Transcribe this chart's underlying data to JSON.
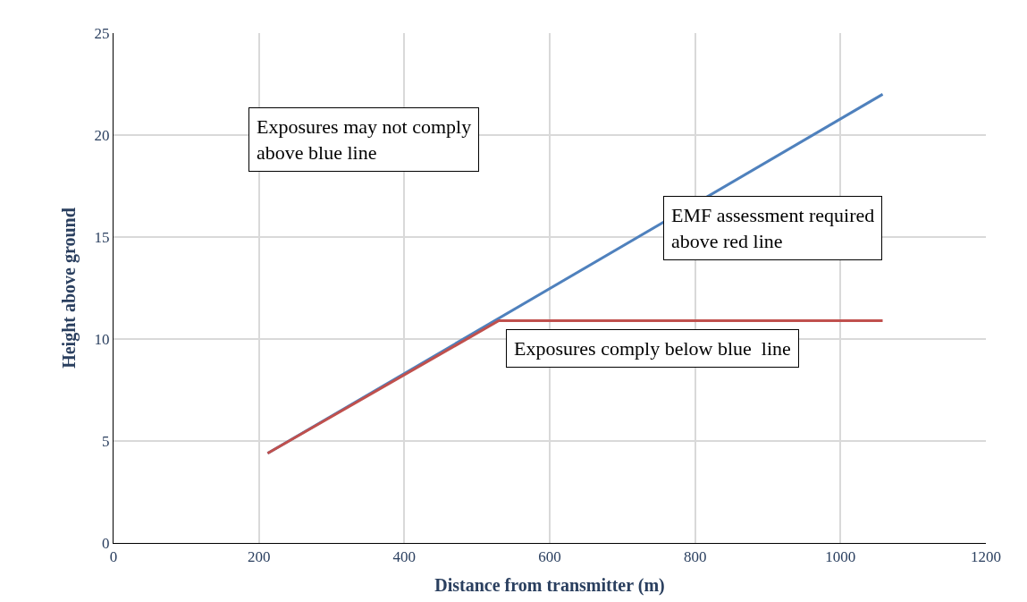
{
  "chart_data": {
    "type": "line",
    "xlabel": "Distance from transmitter (m)",
    "ylabel": "Height above ground",
    "series": [
      {
        "color": "#4f81bd",
        "x": [
          212,
          1058
        ],
        "values": [
          4.4,
          22
        ]
      },
      {
        "color": "#c0504d",
        "x": [
          212,
          530,
          1058
        ],
        "values": [
          4.4,
          10.9,
          10.9
        ]
      }
    ],
    "xlim": [
      0,
      1200
    ],
    "xticks": [
      0,
      200,
      400,
      600,
      800,
      1000,
      1200
    ],
    "ylim": [
      0,
      25
    ],
    "yticks": [
      0,
      5,
      10,
      15,
      20,
      25
    ],
    "grid": true,
    "line_style": "solid",
    "annotations": [
      "Exposures may not comply\nabove blue line",
      "EMF assessment required\nabove red line",
      "Exposures comply below blue  line"
    ]
  }
}
